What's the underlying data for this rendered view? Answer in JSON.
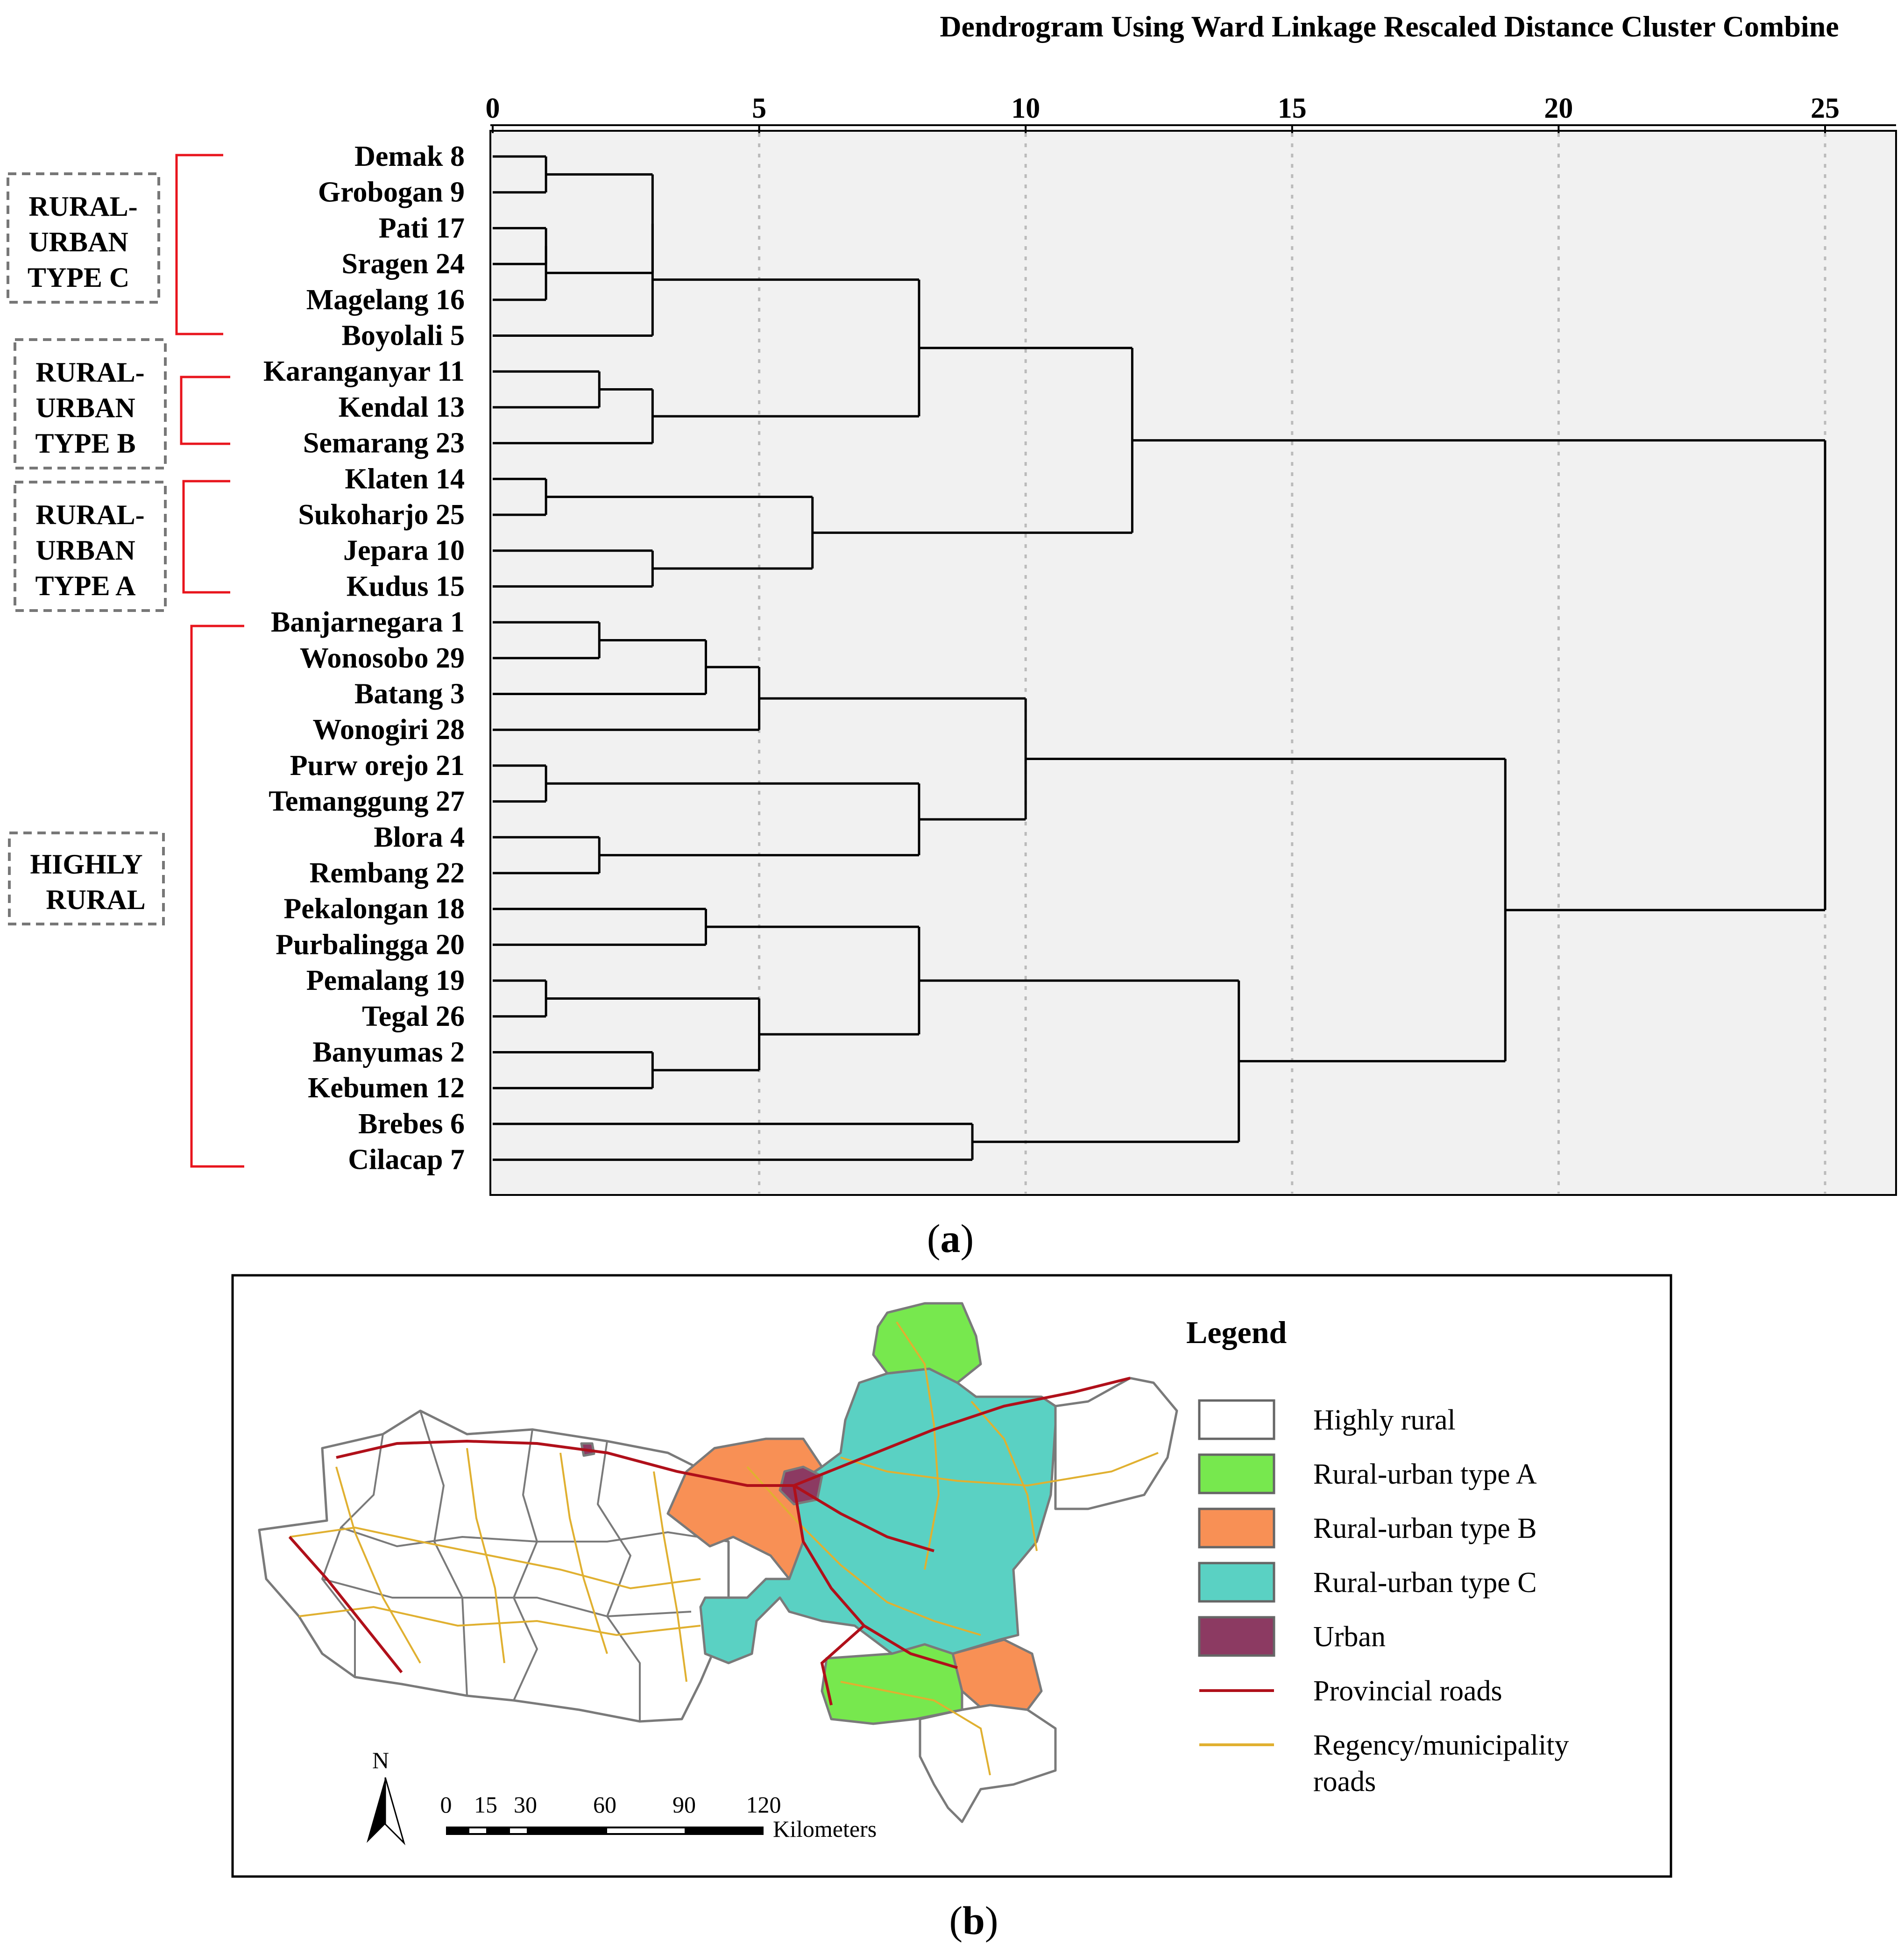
{
  "dendrogram": {
    "title": "Dendrogram Using Ward Linkage Rescaled Distance Cluster Combine",
    "axis_ticks": [
      "0",
      "5",
      "10",
      "15",
      "20",
      "25"
    ],
    "caption_letter": "a",
    "groups": [
      {
        "lines": [
          "RURAL-",
          "URBAN",
          "TYPE C"
        ]
      },
      {
        "lines": [
          "RURAL-",
          "URBAN",
          "TYPE B"
        ]
      },
      {
        "lines": [
          "RURAL-",
          "URBAN",
          "TYPE A"
        ]
      },
      {
        "lines": [
          "HIGHLY",
          "RURAL"
        ]
      }
    ]
  },
  "chart_data": {
    "type": "dendrogram",
    "title": "Dendrogram Using Ward Linkage Rescaled Distance Cluster Combine",
    "xlim": [
      0,
      25
    ],
    "grid": true,
    "leaves": [
      "Demak 8",
      "Grobogan 9",
      "Pati 17",
      "Sragen 24",
      "Magelang 16",
      "Boyolali 5",
      "Karanganyar 11",
      "Kendal 13",
      "Semarang 23",
      "Klaten 14",
      "Sukoharjo 25",
      "Jepara 10",
      "Kudus 15",
      "Banjarnegara 1",
      "Wonosobo 29",
      "Batang 3",
      "Wonogiri 28",
      "Purw orejo 21",
      "Temanggung 27",
      "Blora 4",
      "Rembang 22",
      "Pekalongan 18",
      "Purbalingga 20",
      "Pemalang 19",
      "Tegal 26",
      "Banyumas 2",
      "Kebumen 12",
      "Brebes 6",
      "Cilacap 7"
    ],
    "merges": [
      {
        "a": "L0",
        "b": "L1",
        "height": 1
      },
      {
        "a": "L2",
        "b": "L3",
        "height": 1
      },
      {
        "a": "M1",
        "b": "L4",
        "height": 1
      },
      {
        "a": "M0",
        "b": "M2",
        "height": 3
      },
      {
        "a": "M3",
        "b": "L5",
        "height": 3
      },
      {
        "a": "L6",
        "b": "L7",
        "height": 2
      },
      {
        "a": "M5",
        "b": "L8",
        "height": 3
      },
      {
        "a": "M4",
        "b": "M6",
        "height": 8
      },
      {
        "a": "L9",
        "b": "L10",
        "height": 1
      },
      {
        "a": "L11",
        "b": "L12",
        "height": 3
      },
      {
        "a": "M8",
        "b": "M9",
        "height": 6
      },
      {
        "a": "M7",
        "b": "M10",
        "height": 12
      },
      {
        "a": "L13",
        "b": "L14",
        "height": 2
      },
      {
        "a": "M12",
        "b": "L15",
        "height": 4
      },
      {
        "a": "M13",
        "b": "L16",
        "height": 5
      },
      {
        "a": "L17",
        "b": "L18",
        "height": 1
      },
      {
        "a": "L19",
        "b": "L20",
        "height": 2
      },
      {
        "a": "M15",
        "b": "M16",
        "height": 8
      },
      {
        "a": "M14",
        "b": "M17",
        "height": 10
      },
      {
        "a": "L21",
        "b": "L22",
        "height": 4
      },
      {
        "a": "L23",
        "b": "L24",
        "height": 1
      },
      {
        "a": "L25",
        "b": "L26",
        "height": 3
      },
      {
        "a": "M20",
        "b": "M21",
        "height": 5
      },
      {
        "a": "M19",
        "b": "M22",
        "height": 8
      },
      {
        "a": "L27",
        "b": "L28",
        "height": 9
      },
      {
        "a": "M23",
        "b": "M24",
        "height": 14
      },
      {
        "a": "M18",
        "b": "M25",
        "height": 19
      },
      {
        "a": "M11",
        "b": "M26",
        "height": 25
      }
    ]
  },
  "map": {
    "legend_title": "Legend",
    "legend_items": [
      {
        "label": "Highly rural",
        "color": "#ffffff",
        "kind": "box"
      },
      {
        "label": "Rural-urban type A",
        "color": "#77e84e",
        "kind": "box"
      },
      {
        "label": "Rural-urban type B",
        "color": "#f89055",
        "kind": "box"
      },
      {
        "label": "Rural-urban type C",
        "color": "#5ad1c3",
        "kind": "box"
      },
      {
        "label": "Urban",
        "color": "#8c3a62",
        "kind": "box"
      },
      {
        "label": "Provincial roads",
        "color": "#b0101a",
        "kind": "line"
      },
      {
        "label": "Regency/municipality",
        "label2": "roads",
        "color": "#e0b030",
        "kind": "line"
      }
    ],
    "north_label": "N",
    "scale_ticks": [
      "0",
      "15",
      "30",
      "60",
      "90",
      "120"
    ],
    "scale_unit": "Kilometers",
    "caption_letter": "b"
  }
}
